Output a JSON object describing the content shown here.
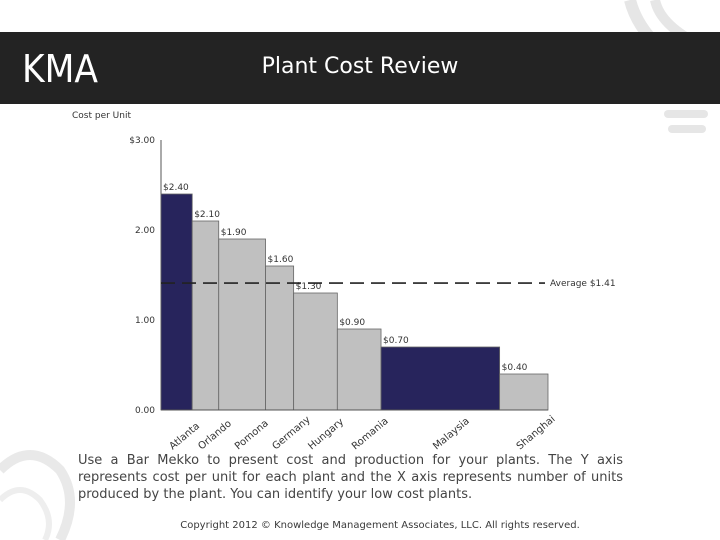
{
  "header": {
    "logo_text": "KMA",
    "title": "Plant Cost Review"
  },
  "colors": {
    "header_bg": "#232323",
    "highlight_bar": "#27245c",
    "normal_bar": "#c0c0c0"
  },
  "chart_data": {
    "type": "bar",
    "variant": "marimekko",
    "ylabel": "Cost per Unit",
    "y_ticks": [
      "0.00",
      "1.00",
      "2.00",
      "$3.00"
    ],
    "ylim": [
      0,
      3
    ],
    "average": {
      "value": 1.41,
      "label": "Average $1.41"
    },
    "bars": [
      {
        "name": "Atlanta",
        "value": 2.4,
        "label": "$2.40",
        "width": 1.0,
        "highlight": true
      },
      {
        "name": "Orlando",
        "value": 2.1,
        "label": "$2.10",
        "width": 0.85,
        "highlight": false
      },
      {
        "name": "Pomona",
        "value": 1.9,
        "label": "$1.90",
        "width": 1.5,
        "highlight": false
      },
      {
        "name": "Germany",
        "value": 1.6,
        "label": "$1.60",
        "width": 0.9,
        "highlight": false
      },
      {
        "name": "Hungary",
        "value": 1.3,
        "label": "$1.30",
        "width": 1.4,
        "highlight": false
      },
      {
        "name": "Romania",
        "value": 0.9,
        "label": "$0.90",
        "width": 1.4,
        "highlight": false
      },
      {
        "name": "Malaysia",
        "value": 0.7,
        "label": "$0.70",
        "width": 3.8,
        "highlight": true
      },
      {
        "name": "Shanghai",
        "value": 0.4,
        "label": "$0.40",
        "width": 1.55,
        "highlight": false
      }
    ]
  },
  "caption": "Use a Bar Mekko to present cost and production for your plants.  The Y axis represents cost per unit for each plant and the X axis represents number of units produced by the plant.  You can identify your low cost plants.",
  "footer": "Copyright 2012 © Knowledge Management Associates, LLC.  All rights reserved."
}
